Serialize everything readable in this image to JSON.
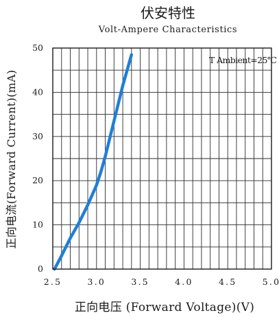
{
  "chart_data": {
    "type": "line",
    "title": "伏安特性",
    "subtitle": "Volt-Ampere Characteristics",
    "xlabel": "正向电压 (Forward Voltage)(V)",
    "ylabel": "正向电流(Forward Current)(mA)",
    "xlim": [
      2.5,
      5.0
    ],
    "ylim": [
      0,
      50
    ],
    "xticks": [
      "2.5",
      "3.0",
      "3.5",
      "4.0",
      "4.5",
      "5.0"
    ],
    "yticks": [
      "0",
      "10",
      "20",
      "30",
      "40",
      "50"
    ],
    "grid": true,
    "annotation": "T Ambient=25℃",
    "line_color": "#1f7fd6",
    "series": [
      {
        "x": [
          2.52,
          2.6,
          2.7,
          2.8,
          2.9,
          3.0,
          3.05,
          3.1,
          3.15,
          3.2,
          3.25,
          3.3,
          3.35,
          3.4
        ],
        "y": [
          0,
          3,
          7,
          10.5,
          14.5,
          19,
          22,
          25.5,
          29.5,
          33.5,
          37.5,
          41.5,
          45,
          48.5
        ]
      }
    ]
  }
}
